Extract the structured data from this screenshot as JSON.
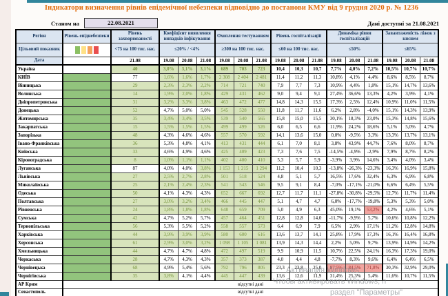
{
  "page": {
    "title": "Індикатори визначення рівнів епідемічної небезпеки відповідно до постанови КМУ від 9 грудня 2020 р. № 1236",
    "as_of_label": "Станом на",
    "as_of_date": "22.08.2021",
    "available_label": "Дані доступні за 21.08.2021"
  },
  "colors": {
    "teal_accent": "#31859c",
    "title_orange": "#e26b0a",
    "header_bg": "#dbe5f1",
    "header_text": "#17375e",
    "date_box_bg": "#e4dfec",
    "danger_green": "#92c47d",
    "ok_cell_bg": "#d8e4bc",
    "ok_cell_text": "#76933c",
    "alert_cell_bg": "#f2a5a0",
    "alert_cell_text": "#9c3432",
    "legend": [
      "#8cc063",
      "#ffe187",
      "#f5a25d",
      "#e94f4f"
    ]
  },
  "watermark": {
    "line1": "Активация Windows",
    "line2": "Чтобы активировать Windows, п",
    "line3": "раздел \"Параметры\""
  },
  "table": {
    "col1": {
      "h1": "Регіон",
      "h2": "Цільовий показник",
      "h3": "Дата"
    },
    "danger": {
      "h1": "Рівень епіднебезпеки"
    },
    "incidence": {
      "h1": "Рівень захворюваності",
      "target": "<75 на 100 тис. нас.",
      "date": "21.08"
    },
    "groups": [
      {
        "key": "coef",
        "h1": "Коефіцієнт виявлення випадків інфікування",
        "target": "≤20% / <4%",
        "dates": [
          "19.08",
          "20.08",
          "21.08"
        ]
      },
      {
        "key": "test",
        "h1": "Охоплення тестуванням",
        "target": "≥300 на 100 тис. нас.",
        "dates": [
          "19.08",
          "20.08",
          "21.08"
        ]
      },
      {
        "key": "hosp",
        "h1": "Рівень госпіталізацій",
        "target": "≤60 на 100 тис. нас.",
        "dates": [
          "19.08",
          "20.08",
          "21.08"
        ]
      },
      {
        "key": "dyn",
        "h1": "Динаміка рівня госпіталізацій",
        "target": "≤50%",
        "dates": [
          "19.08",
          "20.08",
          "21.08"
        ]
      },
      {
        "key": "beds",
        "h1": "Завантаженість ліжок з киснем",
        "target": "≤65%",
        "dates": [
          "19.08",
          "20.08",
          "21.08"
        ]
      }
    ],
    "no_data_text": "відсутні дані",
    "rows": [
      {
        "region": "Україна",
        "bold": true,
        "danger": null,
        "incidence": "40",
        "coef": [
          "3,0%",
          "3,1%",
          "3,1%"
        ],
        "test": [
          "689",
          "703",
          "723"
        ],
        "hosp": [
          "10,4",
          "10,3",
          "10,7"
        ],
        "dyn": [
          "7,7%",
          "4,0%",
          "7,2%"
        ],
        "beds": [
          "10,5%",
          "10,7%",
          "10,7%"
        ]
      },
      {
        "region": "КИЇВ",
        "danger": "green",
        "incidence": "77",
        "coef": [
          "1,6%",
          "1,6%",
          "1,7%"
        ],
        "test": [
          "2 308",
          "2 404",
          "2 481"
        ],
        "hosp": [
          "11,4",
          "11,2",
          "11,3"
        ],
        "dyn": [
          "10,8%",
          "4,1%",
          "4,4%"
        ],
        "beds": [
          "8,6%",
          "8,5%",
          "8,7%"
        ]
      },
      {
        "region": "Вінницька",
        "danger": "green",
        "incidence": "29",
        "coef": [
          "2,3%",
          "2,3%",
          "2,2%"
        ],
        "test": [
          "714",
          "721",
          "740"
        ],
        "hosp": [
          "7,9",
          "7,7",
          "7,3"
        ],
        "dyn": [
          "10,9%",
          "4,4%",
          "1,8%"
        ],
        "beds": [
          "15,1%",
          "14,7%",
          "13,6%"
        ]
      },
      {
        "region": "Волинська",
        "danger": "green",
        "incidence": "14",
        "coef": [
          "1,9%",
          "2,0%",
          "1,8%"
        ],
        "test": [
          "429",
          "431",
          "462"
        ],
        "hosp": [
          "9,0",
          "9,4",
          "9,1"
        ],
        "dyn": [
          "27,4%",
          "36,6%",
          "13,3%"
        ],
        "beds": [
          "4,2%",
          "3,9%",
          "4,1%"
        ]
      },
      {
        "region": "Дніпропетровська",
        "danger": "green",
        "incidence": "31",
        "coef": [
          "3,2%",
          "3,3%",
          "3,8%"
        ],
        "test": [
          "463",
          "472",
          "477"
        ],
        "hosp": [
          "14,8",
          "14,3",
          "15,5"
        ],
        "dyn": [
          "17,3%",
          "2,5%",
          "12,4%"
        ],
        "beds": [
          "10,9%",
          "11,0%",
          "11,5%"
        ]
      },
      {
        "region": "Донецька",
        "danger": "green",
        "incidence": "52",
        "coef": [
          "4,7%",
          "5,0%",
          "5,0%"
        ],
        "test": [
          "545",
          "528",
          "550"
        ],
        "hosp": [
          "11,8",
          "11,7",
          "11,6"
        ],
        "dyn": [
          "6,2%",
          "2,8%",
          "-4,0%"
        ],
        "beds": [
          "15,1%",
          "14,3%",
          "13,9%"
        ]
      },
      {
        "region": "Житомирська",
        "danger": "green",
        "incidence": "35",
        "coef": [
          "3,4%",
          "3,4%",
          "3,5%"
        ],
        "test": [
          "539",
          "540",
          "565"
        ],
        "hosp": [
          "15,8",
          "15,0",
          "15,5"
        ],
        "dyn": [
          "30,1%",
          "18,3%",
          "23,0%"
        ],
        "beds": [
          "15,3%",
          "14,8%",
          "15,6%"
        ]
      },
      {
        "region": "Закарпатська",
        "danger": "green",
        "incidence": "15",
        "coef": [
          "1,5%",
          "1,5%",
          "1,5%"
        ],
        "test": [
          "499",
          "499",
          "526"
        ],
        "hosp": [
          "6,0",
          "6,5",
          "6,6"
        ],
        "dyn": [
          "11,9%",
          "24,2%",
          "18,6%"
        ],
        "beds": [
          "5,1%",
          "5,0%",
          "4,7%"
        ]
      },
      {
        "region": "Запорізька",
        "danger": "green",
        "incidence": "48",
        "coef": [
          "4,3%",
          "4,6%",
          "4,6%"
        ],
        "test": [
          "557",
          "570",
          "592"
        ],
        "hosp": [
          "14,1",
          "13,6",
          "15,0"
        ],
        "dyn": [
          "0,0%",
          "-9,5%",
          "3,3%"
        ],
        "beds": [
          "13,3%",
          "13,7%",
          "13,1%"
        ]
      },
      {
        "region": "Івано-Франківська",
        "danger": "green",
        "incidence": "36",
        "coef": [
          "5,3%",
          "4,8%",
          "4,1%"
        ],
        "test": [
          "413",
          "431",
          "444"
        ],
        "hosp": [
          "6,1",
          "7,0",
          "8,1"
        ],
        "dyn": [
          "3,8%",
          "43,9%",
          "44,7%"
        ],
        "beds": [
          "7,6%",
          "8,0%",
          "8,7%"
        ]
      },
      {
        "region": "Київська",
        "danger": "green",
        "incidence": "33",
        "coef": [
          "4,6%",
          "4,9%",
          "4,6%"
        ],
        "test": [
          "425",
          "409",
          "423"
        ],
        "hosp": [
          "7,3",
          "7,6",
          "7,5"
        ],
        "dyn": [
          "-14,5%",
          "-4,9%",
          "-2,9%"
        ],
        "beds": [
          "7,9%",
          "8,7%",
          "8,2%"
        ]
      },
      {
        "region": "Кіровоградська",
        "danger": "green",
        "incidence": "8",
        "coef": [
          "1,0%",
          "1,1%",
          "1,1%"
        ],
        "test": [
          "402",
          "400",
          "410"
        ],
        "hosp": [
          "5,3",
          "5,7",
          "5,9"
        ],
        "dyn": [
          "-3,9%",
          "3,9%",
          "14,6%"
        ],
        "beds": [
          "3,4%",
          "4,0%",
          "3,4%"
        ]
      },
      {
        "region": "Луганська",
        "danger": "green",
        "incidence": "87",
        "coef": [
          "4,0%",
          "4,0%",
          "3,8%"
        ],
        "test": [
          "1 153",
          "1 215",
          "1 294"
        ],
        "hosp": [
          "11,2",
          "10,4",
          "10,3"
        ],
        "dyn": [
          "-13,8%",
          "-26,3%",
          "-23,3%"
        ],
        "beds": [
          "16,3%",
          "16,9%",
          "15,8%"
        ]
      },
      {
        "region": "Львівська",
        "danger": "green",
        "incidence": "27",
        "coef": [
          "2,5%",
          "2,7%",
          "2,8%"
        ],
        "test": [
          "501",
          "518",
          "524"
        ],
        "hosp": [
          "4,8",
          "5,1",
          "5,7"
        ],
        "dyn": [
          "16,5%",
          "17,6%",
          "32,4%"
        ],
        "beds": [
          "6,3%",
          "6,9%",
          "6,8%"
        ]
      },
      {
        "region": "Миколаївська",
        "danger": "green",
        "incidence": "25",
        "coef": [
          "2,1%",
          "2,4%",
          "2,3%"
        ],
        "test": [
          "541",
          "543",
          "546"
        ],
        "hosp": [
          "9,5",
          "9,1",
          "8,4"
        ],
        "dyn": [
          "-7,0%",
          "-17,1%",
          "-21,0%"
        ],
        "beds": [
          "6,6%",
          "6,4%",
          "5,5%"
        ]
      },
      {
        "region": "Одеська",
        "danger": "green",
        "incidence": "50",
        "coef": [
          "4,1%",
          "4,3%",
          "4,3%"
        ],
        "test": [
          "652",
          "667",
          "692"
        ],
        "hosp": [
          "12,7",
          "11,7",
          "11,1"
        ],
        "dyn": [
          "-27,8%",
          "-30,8%",
          "-29,5%"
        ],
        "beds": [
          "12,7%",
          "11,7%",
          "11,4%"
        ]
      },
      {
        "region": "Полтавська",
        "danger": "green",
        "incidence": "27",
        "coef": [
          "3,0%",
          "3,2%",
          "3,4%"
        ],
        "test": [
          "466",
          "445",
          "447"
        ],
        "hosp": [
          "5,1",
          "4,7",
          "4,7"
        ],
        "dyn": [
          "6,0%",
          "-17,7%",
          "-19,8%"
        ],
        "beds": [
          "5,3%",
          "5,3%",
          "5,0%"
        ]
      },
      {
        "region": "Рівненська",
        "danger": "green",
        "incidence": "24",
        "coef": [
          "1,8%",
          "1,8%",
          "1,8%"
        ],
        "test": [
          "648",
          "659",
          "709"
        ],
        "hosp": [
          "5,0",
          "4,9",
          "6,3"
        ],
        "dyn": [
          "45,0%",
          "19,1%",
          "53,2%"
        ],
        "beds": [
          "4,2%",
          "4,6%",
          "5,1%"
        ]
      },
      {
        "region": "Сумська",
        "danger": "green",
        "incidence": "42",
        "coef": [
          "4,7%",
          "5,2%",
          "5,7%"
        ],
        "test": [
          "457",
          "464",
          "451"
        ],
        "hosp": [
          "12,8",
          "12,8",
          "14,0"
        ],
        "dyn": [
          "-11,7%",
          "-9,9%",
          "5,7%"
        ],
        "beds": [
          "10,6%",
          "10,8%",
          "12,2%"
        ]
      },
      {
        "region": "Тернопільська",
        "danger": "green",
        "incidence": "56",
        "coef": [
          "5,3%",
          "5,5%",
          "5,2%"
        ],
        "test": [
          "558",
          "557",
          "573"
        ],
        "hosp": [
          "6,4",
          "6,9",
          "7,9"
        ],
        "dyn": [
          "6,5%",
          "2,9%",
          "17,1%"
        ],
        "beds": [
          "11,2%",
          "12,8%",
          "14,8%"
        ]
      },
      {
        "region": "Харківська",
        "danger": "green",
        "incidence": "44",
        "coef": [
          "3,9%",
          "3,9%",
          "3,9%"
        ],
        "test": [
          "580",
          "600",
          "616"
        ],
        "hosp": [
          "13,6",
          "13,7",
          "14,1"
        ],
        "dyn": [
          "25,8%",
          "17,9%",
          "17,3%"
        ],
        "beds": [
          "16,1%",
          "16,4%",
          "16,8%"
        ]
      },
      {
        "region": "Херсонська",
        "danger": "green",
        "incidence": "61",
        "coef": [
          "2,9%",
          "3,0%",
          "3,2%"
        ],
        "test": [
          "1 098",
          "1 105",
          "1 081"
        ],
        "hosp": [
          "13,9",
          "14,3",
          "14,4"
        ],
        "dyn": [
          "2,2%",
          "5,0%",
          "9,7%"
        ],
        "beds": [
          "13,9%",
          "14,9%",
          "14,2%"
        ]
      },
      {
        "region": "Хмельницька",
        "danger": "green",
        "incidence": "44",
        "coef": [
          "4,7%",
          "4,7%",
          "4,8%"
        ],
        "test": [
          "472",
          "497",
          "519"
        ],
        "hosp": [
          "9,9",
          "10,9",
          "11,5"
        ],
        "dyn": [
          "10,7%",
          "22,5%",
          "24,1%"
        ],
        "beds": [
          "16,3%",
          "17,3%",
          "19,0%"
        ]
      },
      {
        "region": "Черкаська",
        "danger": "green",
        "incidence": "28",
        "coef": [
          "4,7%",
          "4,3%",
          "4,3%"
        ],
        "test": [
          "357",
          "373",
          "387"
        ],
        "hosp": [
          "4,0",
          "4,4",
          "4,8"
        ],
        "dyn": [
          "-7,7%",
          "8,3%",
          "9,6%"
        ],
        "beds": [
          "6,4%",
          "6,4%",
          "6,5%"
        ]
      },
      {
        "region": "Чернівецька",
        "danger": "green",
        "incidence": "68",
        "coef": [
          "4,9%",
          "5,4%",
          "5,6%"
        ],
        "test": [
          "792",
          "796",
          "805"
        ],
        "hosp": [
          "23,3",
          "23,8",
          "25,0"
        ],
        "dyn": [
          "87,5%",
          "84,5%",
          "71,8%"
        ],
        "beds": [
          "30,3%",
          "32,9%",
          "29,0%"
        ]
      },
      {
        "region": "Чернігівська",
        "danger": "green",
        "incidence": "35",
        "coef": [
          "3,8%",
          "4,1%",
          "4,4%"
        ],
        "test": [
          "445",
          "447",
          "439"
        ],
        "hosp": [
          "13,6",
          "12,6",
          "11,9"
        ],
        "dyn": [
          "31,4%",
          "25,3%",
          "5,4%"
        ],
        "beds": [
          "11,6%",
          "10,7%",
          "11,5%"
        ]
      },
      {
        "region": "АР Крим",
        "no_data": true
      },
      {
        "region": "Севастополь",
        "no_data": true
      }
    ]
  }
}
